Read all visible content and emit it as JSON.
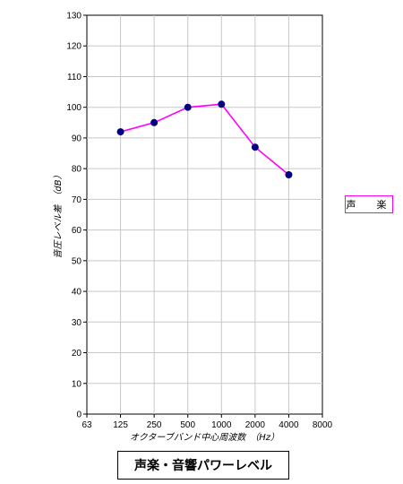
{
  "chart_data": {
    "type": "line",
    "title": "声楽・音響パワーレベル",
    "xlabel": "オクターブバンド中心周波数　（Hz）",
    "ylabel": "音圧レベル差　（dB）",
    "x_ticks": [
      "63",
      "125",
      "250",
      "500",
      "1000",
      "2000",
      "4000",
      "8000"
    ],
    "y_ticks": [
      "0",
      "10",
      "20",
      "30",
      "40",
      "50",
      "60",
      "70",
      "80",
      "90",
      "100",
      "110",
      "120",
      "130"
    ],
    "ylim": [
      0,
      130
    ],
    "grid": true,
    "legend_position": "right",
    "series": [
      {
        "name": "声　楽",
        "color": "#ff00ff",
        "marker_color": "#000080",
        "categories": [
          "125",
          "250",
          "500",
          "1000",
          "2000",
          "4000"
        ],
        "values": [
          92,
          95,
          100,
          101,
          87,
          78
        ]
      }
    ]
  }
}
